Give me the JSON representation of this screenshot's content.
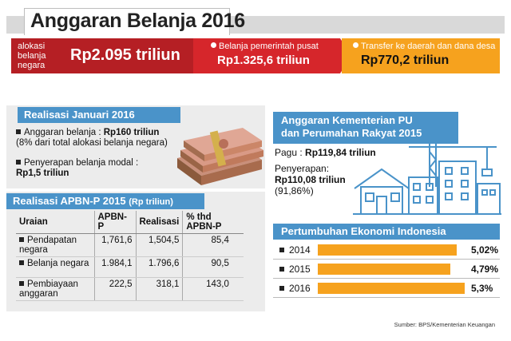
{
  "title": "Anggaran Belanja 2016",
  "banner": {
    "alokasi_label": "alokasi belanja negara",
    "alokasi_value": "Rp2.095 triliun",
    "pusat_label": "Belanja pemerintah pusat",
    "pusat_value": "Rp1.325,6 triliun",
    "transfer_label": "Transfer ke daerah dan dana desa",
    "transfer_value": "Rp770,2 triliun"
  },
  "januari": {
    "heading": "Realisasi Januari 2016",
    "item1_label": "Anggaran belanja : ",
    "item1_value": "Rp160 triliun",
    "item1_note": "(8% dari total alokasi belanja negara)",
    "item2_label": "Penyerapan belanja modal :",
    "item2_value": "Rp1,5 triliun"
  },
  "apbn": {
    "heading": "Realisasi APBN-P 2015",
    "unit": "(Rp triliun)",
    "columns": [
      "Uraian",
      "APBN-P",
      "Realisasi",
      "% thd APBN-P"
    ],
    "rows": [
      [
        "Pendapatan negara",
        "1,761,6",
        "1,504,5",
        "85,4"
      ],
      [
        "Belanja negara",
        "1.984,1",
        "1.796,6",
        "90,5"
      ],
      [
        "Pembiayaan anggaran",
        "222,5",
        "318,1",
        "143,0"
      ]
    ]
  },
  "pu": {
    "heading_line1": "Anggaran Kementerian PU",
    "heading_line2": "dan Perumahan Rakyat 2015",
    "pagu_label": "Pagu : ",
    "pagu_value": "Rp119,84 triliun",
    "serap_label": "Penyerapan:",
    "serap_value": "Rp110,08 triliun",
    "serap_pct": "(91,86%)"
  },
  "chart_data": {
    "type": "bar",
    "title": "Pertumbuhan Ekonomi Indonesia",
    "categories": [
      "2014",
      "2015",
      "2016"
    ],
    "values": [
      5.02,
      4.79,
      5.3
    ],
    "labels": [
      "5,02%",
      "4,79%",
      "5,3%"
    ]
  },
  "source": "Sumber: BPS/Kementerian Keuangan",
  "colors": {
    "dark_red": "#b51f24",
    "red": "#d6262b",
    "orange": "#f6a21e",
    "blue": "#4a93c9",
    "panel_grey": "#ececec"
  }
}
